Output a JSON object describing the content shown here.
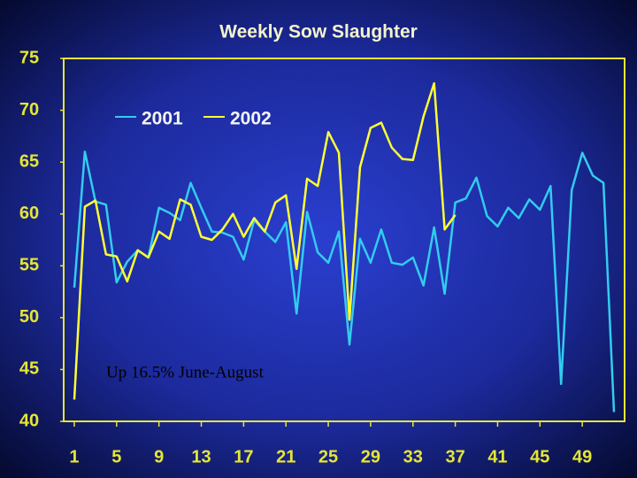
{
  "chart_data": {
    "type": "line",
    "title": "Weekly Sow Slaughter",
    "annotation": "Up 16.5% June-August",
    "x": [
      1,
      2,
      3,
      4,
      5,
      6,
      7,
      8,
      9,
      10,
      11,
      12,
      13,
      14,
      15,
      16,
      17,
      18,
      19,
      20,
      21,
      22,
      23,
      24,
      25,
      26,
      27,
      28,
      29,
      30,
      31,
      32,
      33,
      34,
      35,
      36,
      37,
      38,
      39,
      40,
      41,
      42,
      43,
      44,
      45,
      46,
      47,
      48,
      49,
      50,
      51,
      52
    ],
    "series": [
      {
        "name": "2001",
        "color": "#33ccee",
        "values": [
          52.9,
          66.0,
          61.2,
          60.9,
          53.4,
          55.4,
          56.5,
          55.8,
          60.6,
          60.1,
          59.4,
          63.0,
          60.6,
          58.3,
          58.2,
          57.8,
          55.6,
          59.4,
          58.3,
          57.3,
          59.2,
          50.4,
          60.2,
          56.3,
          55.3,
          58.3,
          47.4,
          57.6,
          55.3,
          58.5,
          55.3,
          55.1,
          55.8,
          53.1,
          58.7,
          52.3,
          61.1,
          61.5,
          63.5,
          59.8,
          58.8,
          60.6,
          59.6,
          61.4,
          60.4,
          62.7,
          43.6,
          62.3,
          65.9,
          63.7,
          63.0,
          40.9
        ]
      },
      {
        "name": "2002",
        "color": "#ffff33",
        "values": [
          42.1,
          60.7,
          61.3,
          56.1,
          55.9,
          53.5,
          56.5,
          55.8,
          58.3,
          57.6,
          61.4,
          60.9,
          57.8,
          57.5,
          58.5,
          60.0,
          57.8,
          59.6,
          58.3,
          61.1,
          61.8,
          54.7,
          63.4,
          62.7,
          67.9,
          65.9,
          49.8,
          64.5,
          68.3,
          68.8,
          66.4,
          65.3,
          65.2,
          69.4,
          72.6,
          58.5,
          59.9,
          null,
          null,
          null,
          null,
          null,
          null,
          null,
          null,
          null,
          null,
          null,
          null,
          null,
          null,
          null
        ]
      }
    ],
    "xlim": [
      0,
      53
    ],
    "xticks": [
      1,
      5,
      9,
      13,
      17,
      21,
      25,
      29,
      33,
      37,
      41,
      45,
      49
    ],
    "ylim": [
      40,
      75
    ],
    "yticks": [
      40,
      45,
      50,
      55,
      60,
      65,
      70,
      75
    ]
  }
}
